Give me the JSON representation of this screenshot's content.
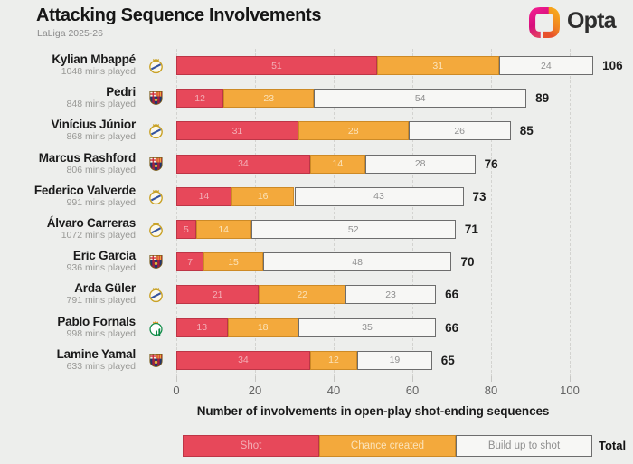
{
  "header": {
    "title": "Attacking Sequence Involvements",
    "subtitle": "LaLiga 2025-26",
    "brand": "Opta"
  },
  "colors": {
    "background": "#edeeec",
    "shot_fill": "#e7485a",
    "shot_border": "#bd3546",
    "shot_text": "#f3aeb6",
    "chance_fill": "#f3a93c",
    "chance_border": "#cd8a26",
    "chance_text": "#fbe3ba",
    "build_fill": "#f7f7f5",
    "build_border": "#6d6d6d",
    "build_text": "#8f8f8f",
    "brand_pink": "#e0197f",
    "brand_orange": "#f49a1c"
  },
  "chart_data": {
    "type": "bar",
    "orientation": "horizontal",
    "stacked": true,
    "title": "Attacking Sequence Involvements",
    "subtitle": "LaLiga 2025-26",
    "xlabel": "Number of involvements in open-play shot-ending sequences",
    "xlim": [
      0,
      107
    ],
    "xticks": [
      0,
      20,
      40,
      60,
      80,
      100
    ],
    "grid": "dashed-vertical",
    "legend_position": "bottom",
    "series_names": [
      "Shot",
      "Chance created",
      "Build up to shot"
    ],
    "players": [
      {
        "name": "Kylian Mbappé",
        "mins": "1048 mins played",
        "team": "real-madrid",
        "values": [
          51,
          31,
          24
        ],
        "total": 106
      },
      {
        "name": "Pedri",
        "mins": "848 mins played",
        "team": "barcelona",
        "values": [
          12,
          23,
          54
        ],
        "total": 89
      },
      {
        "name": "Vinícius Júnior",
        "mins": "868 mins played",
        "team": "real-madrid",
        "values": [
          31,
          28,
          26
        ],
        "total": 85
      },
      {
        "name": "Marcus Rashford",
        "mins": "806 mins played",
        "team": "barcelona",
        "values": [
          34,
          14,
          28
        ],
        "total": 76
      },
      {
        "name": "Federico Valverde",
        "mins": "991 mins played",
        "team": "real-madrid",
        "values": [
          14,
          16,
          43
        ],
        "total": 73
      },
      {
        "name": "Álvaro Carreras",
        "mins": "1072 mins played",
        "team": "real-madrid",
        "values": [
          5,
          14,
          52
        ],
        "total": 71
      },
      {
        "name": "Eric García",
        "mins": "936 mins played",
        "team": "barcelona",
        "values": [
          7,
          15,
          48
        ],
        "total": 70
      },
      {
        "name": "Arda Güler",
        "mins": "791 mins played",
        "team": "real-madrid",
        "values": [
          21,
          22,
          23
        ],
        "total": 66
      },
      {
        "name": "Pablo Fornals",
        "mins": "998 mins played",
        "team": "real-betis",
        "values": [
          13,
          18,
          35
        ],
        "total": 66
      },
      {
        "name": "Lamine Yamal",
        "mins": "633 mins played",
        "team": "barcelona",
        "values": [
          34,
          12,
          19
        ],
        "total": 65
      }
    ]
  },
  "legend": {
    "items": [
      {
        "label": "Shot"
      },
      {
        "label": "Chance created"
      },
      {
        "label": "Build up to shot"
      }
    ],
    "total_label": "Total"
  }
}
